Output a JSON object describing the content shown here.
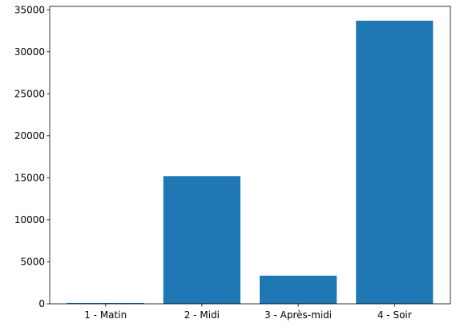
{
  "chart_data": {
    "type": "bar",
    "title": "",
    "xlabel": "",
    "ylabel": "",
    "categories": [
      "1 - Matin",
      "2 - Midi",
      "3 - Après-midi",
      "4 - Soir"
    ],
    "values": [
      100,
      15200,
      3350,
      33700
    ],
    "ylim": [
      0,
      35400
    ],
    "yticks": [
      0,
      5000,
      10000,
      15000,
      20000,
      25000,
      30000,
      35000
    ],
    "ytick_labels": [
      "0",
      "5000",
      "10000",
      "15000",
      "20000",
      "25000",
      "30000",
      "35000"
    ],
    "bar_color": "#1f77b4",
    "grid": false,
    "legend": "none"
  }
}
